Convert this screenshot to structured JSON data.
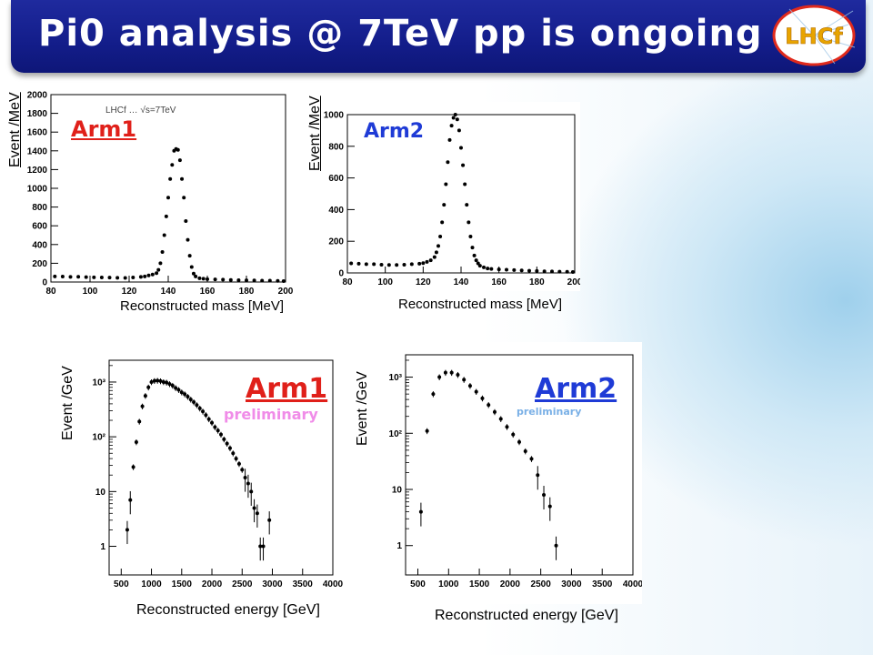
{
  "slide": {
    "title": "Pi0 analysis @ 7TeV pp is ongoing",
    "logo_text": "LHCf",
    "colors": {
      "banner": "#131d8a",
      "arm1": "#e0201a",
      "arm2": "#1f3bd6",
      "prelim1": "#f08ce8",
      "prelim2": "#7ab0e6"
    }
  },
  "chart_data": [
    {
      "type": "scatter",
      "label": "Arm1",
      "inner_text": "LHCf … √s=7TeV",
      "xlabel": "Reconstructed mass [MeV]",
      "ylabel": "Event /MeV",
      "xlim": [
        80,
        200
      ],
      "ylim": [
        0,
        2000
      ],
      "xticks": [
        80,
        100,
        120,
        140,
        160,
        180,
        200
      ],
      "yticks": [
        0,
        200,
        400,
        600,
        800,
        1000,
        1200,
        1400,
        1600,
        1800,
        2000
      ],
      "ytick_labels": [
        "0",
        "200",
        "400",
        "600",
        "800",
        "1000",
        "1200",
        "1400",
        "1600",
        "1800",
        "2000"
      ],
      "x": [
        82,
        86,
        90,
        94,
        98,
        102,
        106,
        110,
        114,
        118,
        122,
        126,
        128,
        130,
        132,
        134,
        135,
        136,
        137,
        138,
        139,
        140,
        141,
        142,
        143,
        144,
        145,
        146,
        147,
        148,
        149,
        150,
        151,
        152,
        153,
        154,
        156,
        158,
        160,
        164,
        168,
        172,
        176,
        180,
        184,
        188,
        192,
        196,
        199
      ],
      "y": [
        60,
        58,
        55,
        56,
        52,
        50,
        48,
        47,
        45,
        44,
        48,
        55,
        60,
        70,
        80,
        95,
        130,
        200,
        320,
        500,
        700,
        900,
        1100,
        1250,
        1400,
        1420,
        1410,
        1300,
        1100,
        900,
        650,
        450,
        280,
        160,
        90,
        60,
        40,
        35,
        30,
        28,
        25,
        22,
        20,
        18,
        17,
        15,
        14,
        12,
        10
      ]
    },
    {
      "type": "scatter",
      "label": "Arm2",
      "xlabel": "Reconstructed mass [MeV]",
      "ylabel": "Event /MeV",
      "xlim": [
        80,
        200
      ],
      "ylim": [
        0,
        1000
      ],
      "xticks": [
        80,
        100,
        120,
        140,
        160,
        180,
        200
      ],
      "yticks": [
        0,
        200,
        400,
        600,
        800,
        1000
      ],
      "ytick_labels": [
        "0",
        "200",
        "400",
        "600",
        "800",
        "1000"
      ],
      "x": [
        82,
        86,
        90,
        94,
        98,
        102,
        106,
        110,
        114,
        118,
        120,
        122,
        124,
        126,
        127,
        128,
        129,
        130,
        131,
        132,
        133,
        134,
        135,
        136,
        137,
        138,
        139,
        140,
        141,
        142,
        143,
        144,
        145,
        146,
        147,
        148,
        149,
        150,
        152,
        154,
        156,
        160,
        164,
        168,
        172,
        176,
        180,
        184,
        188,
        192,
        196,
        199
      ],
      "y": [
        60,
        58,
        55,
        55,
        52,
        50,
        50,
        52,
        55,
        58,
        62,
        70,
        80,
        100,
        130,
        170,
        230,
        320,
        430,
        560,
        700,
        840,
        930,
        980,
        1000,
        970,
        900,
        790,
        680,
        560,
        430,
        320,
        230,
        160,
        110,
        80,
        60,
        45,
        35,
        28,
        25,
        22,
        20,
        18,
        16,
        14,
        12,
        10,
        9,
        8,
        7,
        6
      ]
    },
    {
      "type": "scatter",
      "label": "Arm1",
      "sublabel": "preliminary",
      "xlabel": "Reconstructed energy [GeV]",
      "ylabel": "Event /GeV",
      "xscale": "linear",
      "yscale": "log",
      "xlim": [
        300,
        4000
      ],
      "ylim": [
        0.3,
        2500
      ],
      "xticks": [
        500,
        1000,
        1500,
        2000,
        2500,
        3000,
        3500,
        4000
      ],
      "yticks": [
        1,
        10,
        100,
        1000
      ],
      "ytick_labels": [
        "1",
        "10",
        "10²",
        "10³"
      ],
      "x": [
        600,
        650,
        700,
        750,
        800,
        850,
        900,
        950,
        1000,
        1050,
        1100,
        1150,
        1200,
        1250,
        1300,
        1350,
        1400,
        1450,
        1500,
        1550,
        1600,
        1650,
        1700,
        1750,
        1800,
        1850,
        1900,
        1950,
        2000,
        2050,
        2100,
        2150,
        2200,
        2250,
        2300,
        2350,
        2400,
        2450,
        2500,
        2550,
        2600,
        2650,
        2700,
        2750,
        2800,
        2850,
        2950
      ],
      "y": [
        2,
        7,
        28,
        80,
        190,
        360,
        560,
        800,
        1000,
        1050,
        1060,
        1040,
        1000,
        980,
        920,
        860,
        780,
        720,
        650,
        600,
        540,
        480,
        430,
        380,
        330,
        290,
        250,
        210,
        180,
        150,
        130,
        110,
        90,
        75,
        62,
        50,
        40,
        32,
        25,
        18,
        14,
        10,
        5,
        4,
        1,
        1,
        3
      ]
    },
    {
      "type": "scatter",
      "label": "Arm2",
      "sublabel": "preliminary",
      "xlabel": "Reconstructed energy [GeV]",
      "ylabel": "Event /GeV",
      "xscale": "linear",
      "yscale": "log",
      "xlim": [
        300,
        4000
      ],
      "ylim": [
        0.3,
        2500
      ],
      "xticks": [
        500,
        1000,
        1500,
        2000,
        2500,
        3000,
        3500,
        4000
      ],
      "yticks": [
        1,
        10,
        100,
        1000
      ],
      "ytick_labels": [
        "1",
        "10",
        "10²",
        "10³"
      ],
      "x": [
        550,
        650,
        750,
        850,
        950,
        1050,
        1150,
        1250,
        1350,
        1450,
        1550,
        1650,
        1750,
        1850,
        1950,
        2050,
        2150,
        2250,
        2350,
        2450,
        2550,
        2650,
        2750
      ],
      "y": [
        4,
        110,
        500,
        1000,
        1200,
        1200,
        1100,
        900,
        700,
        550,
        420,
        320,
        240,
        180,
        130,
        95,
        70,
        48,
        35,
        18,
        8,
        5,
        1
      ]
    }
  ]
}
